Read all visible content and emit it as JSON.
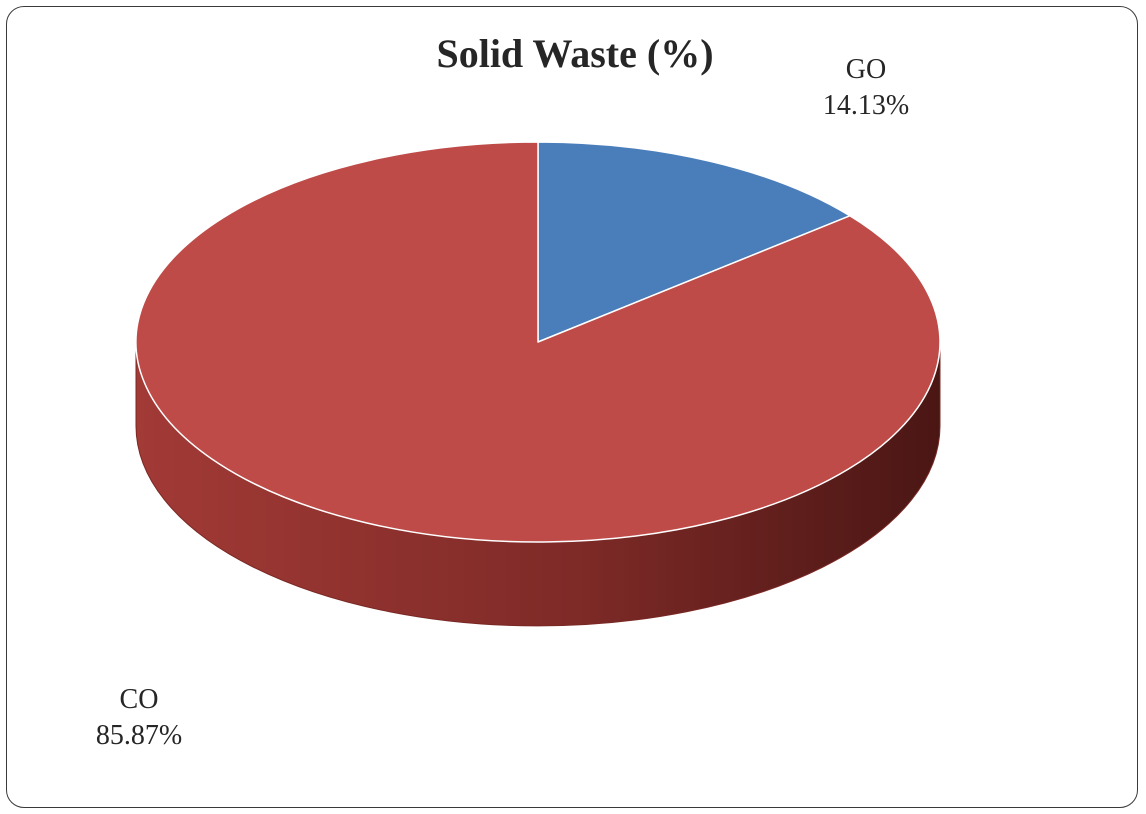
{
  "chart_data": {
    "type": "pie",
    "title": "Solid Waste (%)",
    "style": "3d",
    "slices": [
      {
        "name": "GO",
        "value": 14.13,
        "label": "14.13%",
        "color": "#4A7EBB"
      },
      {
        "name": "CO",
        "value": 85.87,
        "label": "85.87%",
        "color": "#BE4B48"
      }
    ],
    "side_colors": {
      "GO": "#2E5A8C",
      "CO": "#7A2824"
    },
    "border_color": "#FFFFFF"
  }
}
